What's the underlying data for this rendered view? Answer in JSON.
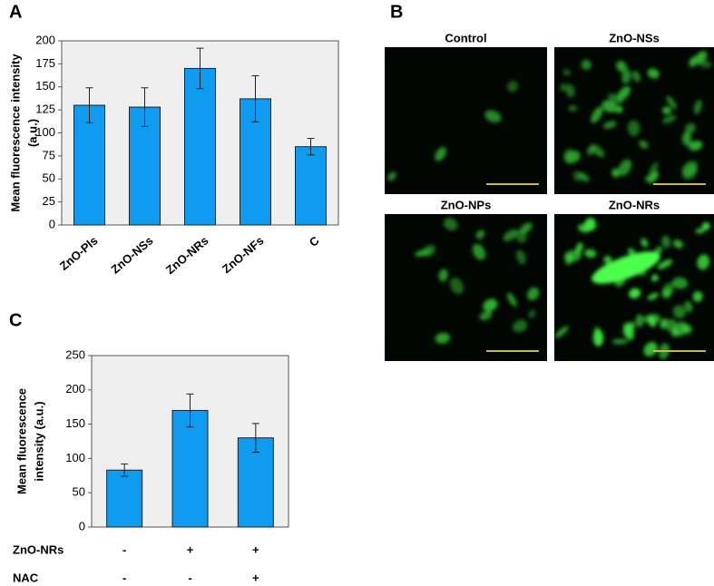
{
  "chart_data": [
    {
      "type": "bar",
      "panel": "A",
      "ylabel": [
        "Mean fluorescence intensity",
        "(a.u.)"
      ],
      "categories": [
        "ZnO-Pls",
        "ZnO-NSs",
        "ZnO-NRs",
        "ZnO-NFs",
        "C"
      ],
      "values": [
        130,
        128,
        170,
        137,
        85
      ],
      "errors": [
        19,
        21,
        22,
        25,
        9
      ],
      "color": "#0f9bf0",
      "ylim": [
        0,
        200
      ],
      "yticks": [
        0,
        25,
        50,
        75,
        100,
        125,
        150,
        175,
        200
      ]
    },
    {
      "type": "bar",
      "panel": "C",
      "ylabel": [
        "Mean fluorescence",
        "intensity (a.u.)"
      ],
      "conditions": [
        {
          "name": "ZnO-NRs",
          "values": [
            "-",
            "+",
            "+"
          ]
        },
        {
          "name": "NAC",
          "values": [
            "-",
            "-",
            "+"
          ]
        }
      ],
      "values": [
        83,
        170,
        130
      ],
      "errors": [
        9,
        24,
        21
      ],
      "color": "#0f9bf0",
      "ylim": [
        0,
        250
      ],
      "yticks": [
        0,
        50,
        100,
        150,
        200,
        250
      ]
    }
  ],
  "panel_b": {
    "panel": "B",
    "titles": [
      "Control",
      "ZnO-NSs",
      "ZnO-NPs",
      "ZnO-NRs"
    ]
  }
}
